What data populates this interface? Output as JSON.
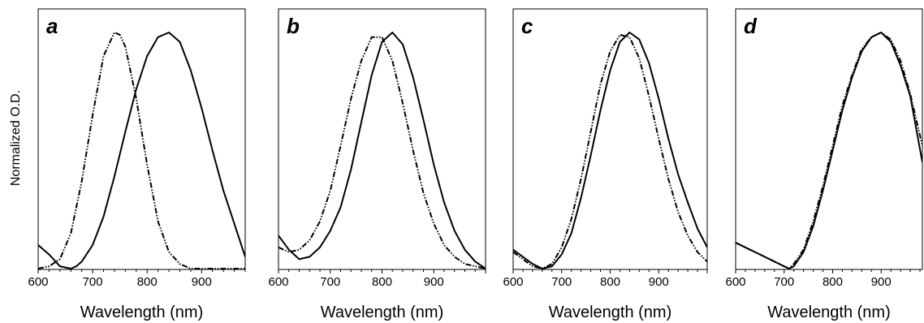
{
  "figure": {
    "ylabel": "Normalized O.D."
  },
  "chart_data": [
    {
      "type": "line",
      "panel_label": "a",
      "xlabel": "Wavelength (nm)",
      "ylabel": "Normalized O.D.",
      "xlim": [
        600,
        980
      ],
      "ylim": [
        0,
        1
      ],
      "x_ticks": [
        600,
        700,
        800,
        900
      ],
      "grid": false,
      "series": [
        {
          "style": "solid",
          "x": [
            600,
            620,
            640,
            660,
            670,
            680,
            700,
            720,
            740,
            760,
            780,
            800,
            820,
            840,
            860,
            880,
            900,
            920,
            940,
            960,
            980
          ],
          "y": [
            0.1,
            0.06,
            0.01,
            0.0,
            0.01,
            0.03,
            0.1,
            0.22,
            0.39,
            0.58,
            0.76,
            0.9,
            0.98,
            1.0,
            0.96,
            0.84,
            0.68,
            0.5,
            0.33,
            0.19,
            0.05
          ]
        },
        {
          "style": "dash-dot-dot",
          "x": [
            600,
            620,
            640,
            660,
            680,
            700,
            720,
            740,
            750,
            760,
            780,
            800,
            820,
            840,
            860,
            880,
            900,
            920,
            940,
            960,
            980
          ],
          "y": [
            0.0,
            0.01,
            0.04,
            0.15,
            0.37,
            0.65,
            0.9,
            1.0,
            0.99,
            0.94,
            0.72,
            0.44,
            0.2,
            0.07,
            0.02,
            0.0,
            0.0,
            0.0,
            0.0,
            0.0,
            0.0
          ]
        }
      ]
    },
    {
      "type": "line",
      "panel_label": "b",
      "xlabel": "Wavelength (nm)",
      "ylabel": "",
      "xlim": [
        600,
        1000
      ],
      "ylim": [
        0,
        1
      ],
      "x_ticks": [
        600,
        700,
        800,
        900
      ],
      "grid": false,
      "series": [
        {
          "style": "solid",
          "x": [
            600,
            620,
            640,
            660,
            680,
            700,
            720,
            740,
            760,
            780,
            800,
            820,
            840,
            860,
            880,
            900,
            920,
            940,
            960,
            980,
            1000
          ],
          "y": [
            0.14,
            0.08,
            0.04,
            0.05,
            0.09,
            0.16,
            0.26,
            0.42,
            0.62,
            0.82,
            0.96,
            1.0,
            0.95,
            0.81,
            0.63,
            0.44,
            0.28,
            0.16,
            0.08,
            0.03,
            0.0
          ]
        },
        {
          "style": "dash-dot-dot",
          "x": [
            600,
            620,
            640,
            660,
            680,
            700,
            720,
            740,
            760,
            780,
            800,
            820,
            840,
            860,
            880,
            900,
            920,
            940,
            960,
            980,
            1000
          ],
          "y": [
            0.09,
            0.07,
            0.08,
            0.12,
            0.2,
            0.33,
            0.52,
            0.72,
            0.88,
            0.98,
            0.98,
            0.88,
            0.7,
            0.5,
            0.32,
            0.19,
            0.1,
            0.05,
            0.02,
            0.01,
            0.0
          ]
        }
      ]
    },
    {
      "type": "line",
      "panel_label": "c",
      "xlabel": "Wavelength (nm)",
      "ylabel": "",
      "xlim": [
        600,
        1000
      ],
      "ylim": [
        0,
        1
      ],
      "x_ticks": [
        600,
        700,
        800,
        900
      ],
      "grid": false,
      "series": [
        {
          "style": "solid",
          "x": [
            600,
            620,
            640,
            660,
            680,
            700,
            720,
            740,
            760,
            780,
            800,
            820,
            840,
            860,
            880,
            900,
            920,
            940,
            960,
            980,
            1000
          ],
          "y": [
            0.08,
            0.05,
            0.02,
            0.0,
            0.01,
            0.06,
            0.15,
            0.3,
            0.48,
            0.67,
            0.84,
            0.96,
            1.0,
            0.97,
            0.87,
            0.72,
            0.55,
            0.4,
            0.28,
            0.17,
            0.09
          ]
        },
        {
          "style": "dash-dot-dot",
          "x": [
            600,
            620,
            640,
            660,
            680,
            700,
            720,
            740,
            760,
            780,
            800,
            820,
            840,
            860,
            880,
            900,
            920,
            940,
            960,
            980,
            1000
          ],
          "y": [
            0.07,
            0.04,
            0.01,
            0.0,
            0.02,
            0.09,
            0.21,
            0.38,
            0.58,
            0.78,
            0.92,
            0.99,
            0.98,
            0.89,
            0.73,
            0.55,
            0.38,
            0.24,
            0.14,
            0.07,
            0.03
          ]
        }
      ]
    },
    {
      "type": "line",
      "panel_label": "d",
      "xlabel": "Wavelength (nm)",
      "ylabel": "",
      "xlim": [
        600,
        985
      ],
      "ylim": [
        0,
        1
      ],
      "x_ticks": [
        600,
        700,
        800,
        900
      ],
      "grid": false,
      "series": [
        {
          "style": "solid",
          "x": [
            600,
            620,
            640,
            660,
            680,
            700,
            710,
            720,
            740,
            760,
            780,
            800,
            820,
            840,
            860,
            880,
            900,
            920,
            940,
            960,
            985
          ],
          "y": [
            0.11,
            0.09,
            0.07,
            0.05,
            0.03,
            0.01,
            0.0,
            0.01,
            0.07,
            0.18,
            0.33,
            0.5,
            0.67,
            0.81,
            0.92,
            0.98,
            1.0,
            0.96,
            0.86,
            0.73,
            0.45
          ]
        },
        {
          "style": "dash-dot-dot",
          "x": [
            600,
            620,
            640,
            660,
            680,
            700,
            710,
            720,
            740,
            760,
            780,
            800,
            820,
            840,
            860,
            880,
            900,
            920,
            940,
            960,
            985
          ],
          "y": [
            0.11,
            0.09,
            0.07,
            0.05,
            0.03,
            0.01,
            0.0,
            0.02,
            0.08,
            0.2,
            0.35,
            0.52,
            0.69,
            0.82,
            0.93,
            0.98,
            1.0,
            0.97,
            0.88,
            0.74,
            0.52
          ]
        }
      ]
    }
  ]
}
